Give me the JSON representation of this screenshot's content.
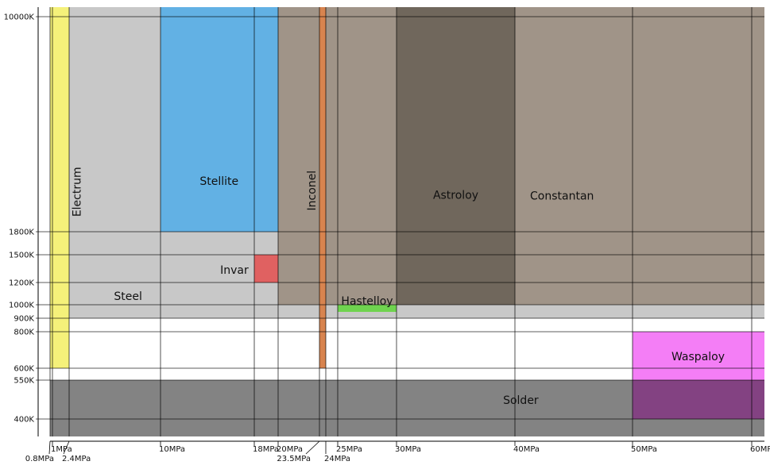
{
  "chart_data": {
    "type": "phase-diagram",
    "x_ticks": [
      {
        "value": 0.8,
        "label": "0.8MPa",
        "row": 2
      },
      {
        "value": 1,
        "label": "1MPa",
        "row": 1
      },
      {
        "value": 2.4,
        "label": "2.4MPa",
        "row": 2
      },
      {
        "value": 10,
        "label": "10MPa",
        "row": 1
      },
      {
        "value": 18,
        "label": "18MPa",
        "row": 1
      },
      {
        "value": 20,
        "label": "20MPa",
        "row": 1
      },
      {
        "value": 23.5,
        "label": "23.5MPa",
        "row": 2
      },
      {
        "value": 24,
        "label": "24MPa",
        "row": 2
      },
      {
        "value": 25,
        "label": "25MPa",
        "row": 1
      },
      {
        "value": 30,
        "label": "30MPa",
        "row": 1
      },
      {
        "value": 40,
        "label": "40MPa",
        "row": 1
      },
      {
        "value": 50,
        "label": "50MPa",
        "row": 1
      },
      {
        "value": 60,
        "label": "60MPa",
        "row": 1
      }
    ],
    "y_ticks": [
      {
        "value": 400,
        "label": "400K"
      },
      {
        "value": 550,
        "label": "550K"
      },
      {
        "value": 600,
        "label": "600K"
      },
      {
        "value": 800,
        "label": "800K"
      },
      {
        "value": 900,
        "label": "900K"
      },
      {
        "value": 1000,
        "label": "1000K"
      },
      {
        "value": 1200,
        "label": "1200K"
      },
      {
        "value": 1500,
        "label": "1500K"
      },
      {
        "value": 1800,
        "label": "1800K"
      },
      {
        "value": 10000,
        "label": "10000K"
      }
    ],
    "regions": [
      {
        "name": "Steel",
        "pressure": [
          0.8,
          60.8
        ],
        "temperature": [
          900,
          10600
        ],
        "color": "#c8c8c8"
      },
      {
        "name": "Constantan",
        "pressure": [
          20,
          60.8
        ],
        "temperature": [
          1000,
          10600
        ],
        "color": "#a09488"
      },
      {
        "name": "Astroloy",
        "pressure": [
          30,
          40
        ],
        "temperature": [
          1000,
          10600
        ],
        "color": "#70675c"
      },
      {
        "name": "Stellite",
        "pressure": [
          10,
          20
        ],
        "temperature": [
          1800,
          10600
        ],
        "color": "#62b1e4"
      },
      {
        "name": "Invar",
        "pressure": [
          18,
          20
        ],
        "temperature": [
          1200,
          1500
        ],
        "color": "#e06161"
      },
      {
        "name": "Hastelloy",
        "pressure": [
          25,
          30
        ],
        "temperature": [
          950,
          1000
        ],
        "color": "#6fd34f"
      },
      {
        "name": "Electrum",
        "pressure": [
          0.8,
          2.4
        ],
        "temperature": [
          600,
          10600
        ],
        "color": "#f5f17a"
      },
      {
        "name": "Inconel",
        "pressure": [
          23.5,
          24
        ],
        "temperature": [
          600,
          10600
        ],
        "color": "#d8844f"
      },
      {
        "name": "Solder",
        "pressure": [
          0.8,
          60.8
        ],
        "temperature": [
          340,
          550
        ],
        "color": "#838383"
      },
      {
        "name": "Waspaloy",
        "pressure": [
          50,
          60.8
        ],
        "temperature": [
          400,
          800
        ],
        "color": "#f47ef6"
      },
      {
        "name": "Solder/Waspaloy overlap",
        "pressure": [
          50,
          60.8
        ],
        "temperature": [
          400,
          550
        ],
        "color": "#834282"
      }
    ],
    "labels": [
      {
        "text": "Stellite",
        "p": 15,
        "t": 3700
      },
      {
        "text": "Astroloy",
        "p": 35,
        "t": 3180
      },
      {
        "text": "Constantan",
        "p": 44,
        "t": 3150
      },
      {
        "text": "Invar",
        "p": 16.3,
        "t": 1330
      },
      {
        "text": "Steel",
        "p": 7.3,
        "t": 1070
      },
      {
        "text": "Hastelloy",
        "p": 27.5,
        "t": 1030
      },
      {
        "text": "Waspaloy",
        "p": 55.5,
        "t": 660
      },
      {
        "text": "Solder",
        "p": 40.5,
        "t": 470
      },
      {
        "text": "Electrum",
        "p": 3.1,
        "t": 3320,
        "rotate": true
      },
      {
        "text": "Inconel",
        "p": 22.9,
        "t": 3370,
        "rotate": true
      }
    ]
  }
}
